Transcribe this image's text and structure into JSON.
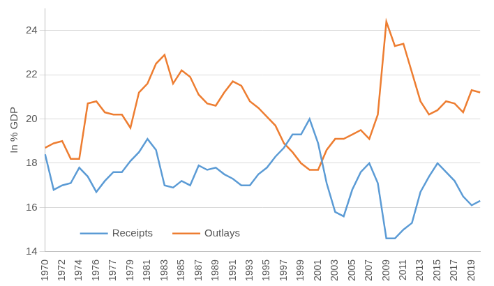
{
  "chart_data": {
    "type": "line",
    "ylabel": "In % GDP",
    "categories": [
      "1970",
      null,
      "1972",
      null,
      "1974",
      null,
      "1976",
      null,
      "1977",
      null,
      "1979",
      null,
      "1981",
      null,
      "1983",
      null,
      "1985",
      null,
      "1987",
      null,
      "1989",
      null,
      "1991",
      null,
      "1993",
      null,
      "1995",
      null,
      "1997",
      null,
      "1999",
      null,
      "2001",
      null,
      "2003",
      null,
      "2005",
      null,
      "2007",
      null,
      "2009",
      null,
      "2011",
      null,
      "2013",
      null,
      "2015",
      null,
      "2017",
      null,
      "2019",
      null
    ],
    "series": [
      {
        "name": "Receipts",
        "color": "#5b9bd5",
        "values": [
          18.4,
          16.8,
          17.0,
          17.1,
          17.8,
          17.4,
          16.7,
          17.2,
          17.6,
          17.6,
          18.1,
          18.5,
          19.1,
          18.6,
          17.0,
          16.9,
          17.2,
          17.0,
          17.9,
          17.7,
          17.8,
          17.5,
          17.3,
          17.0,
          17.0,
          17.5,
          17.8,
          18.3,
          18.7,
          19.3,
          19.3,
          20.0,
          18.9,
          17.1,
          15.8,
          15.6,
          16.8,
          17.6,
          18.0,
          17.1,
          14.6,
          14.6,
          15.0,
          15.3,
          16.7,
          17.4,
          18.0,
          17.6,
          17.2,
          16.5,
          16.1,
          16.3
        ]
      },
      {
        "name": "Outlays",
        "color": "#ed7d31",
        "values": [
          18.7,
          18.9,
          19.0,
          18.2,
          18.2,
          20.7,
          20.8,
          20.3,
          20.2,
          20.2,
          19.6,
          21.2,
          21.6,
          22.5,
          22.9,
          21.6,
          22.2,
          21.9,
          21.1,
          20.7,
          20.6,
          21.2,
          21.7,
          21.5,
          20.8,
          20.5,
          20.1,
          19.7,
          18.9,
          18.5,
          18.0,
          17.7,
          17.7,
          18.6,
          19.1,
          19.1,
          19.3,
          19.5,
          19.1,
          20.2,
          24.4,
          23.3,
          23.4,
          22.1,
          20.8,
          20.2,
          20.4,
          20.8,
          20.7,
          20.3,
          21.3,
          21.2
        ]
      }
    ],
    "ylim": [
      14,
      25
    ],
    "yticks": [
      14,
      16,
      18,
      20,
      22,
      24
    ],
    "grid": true,
    "legend": "lower left"
  }
}
